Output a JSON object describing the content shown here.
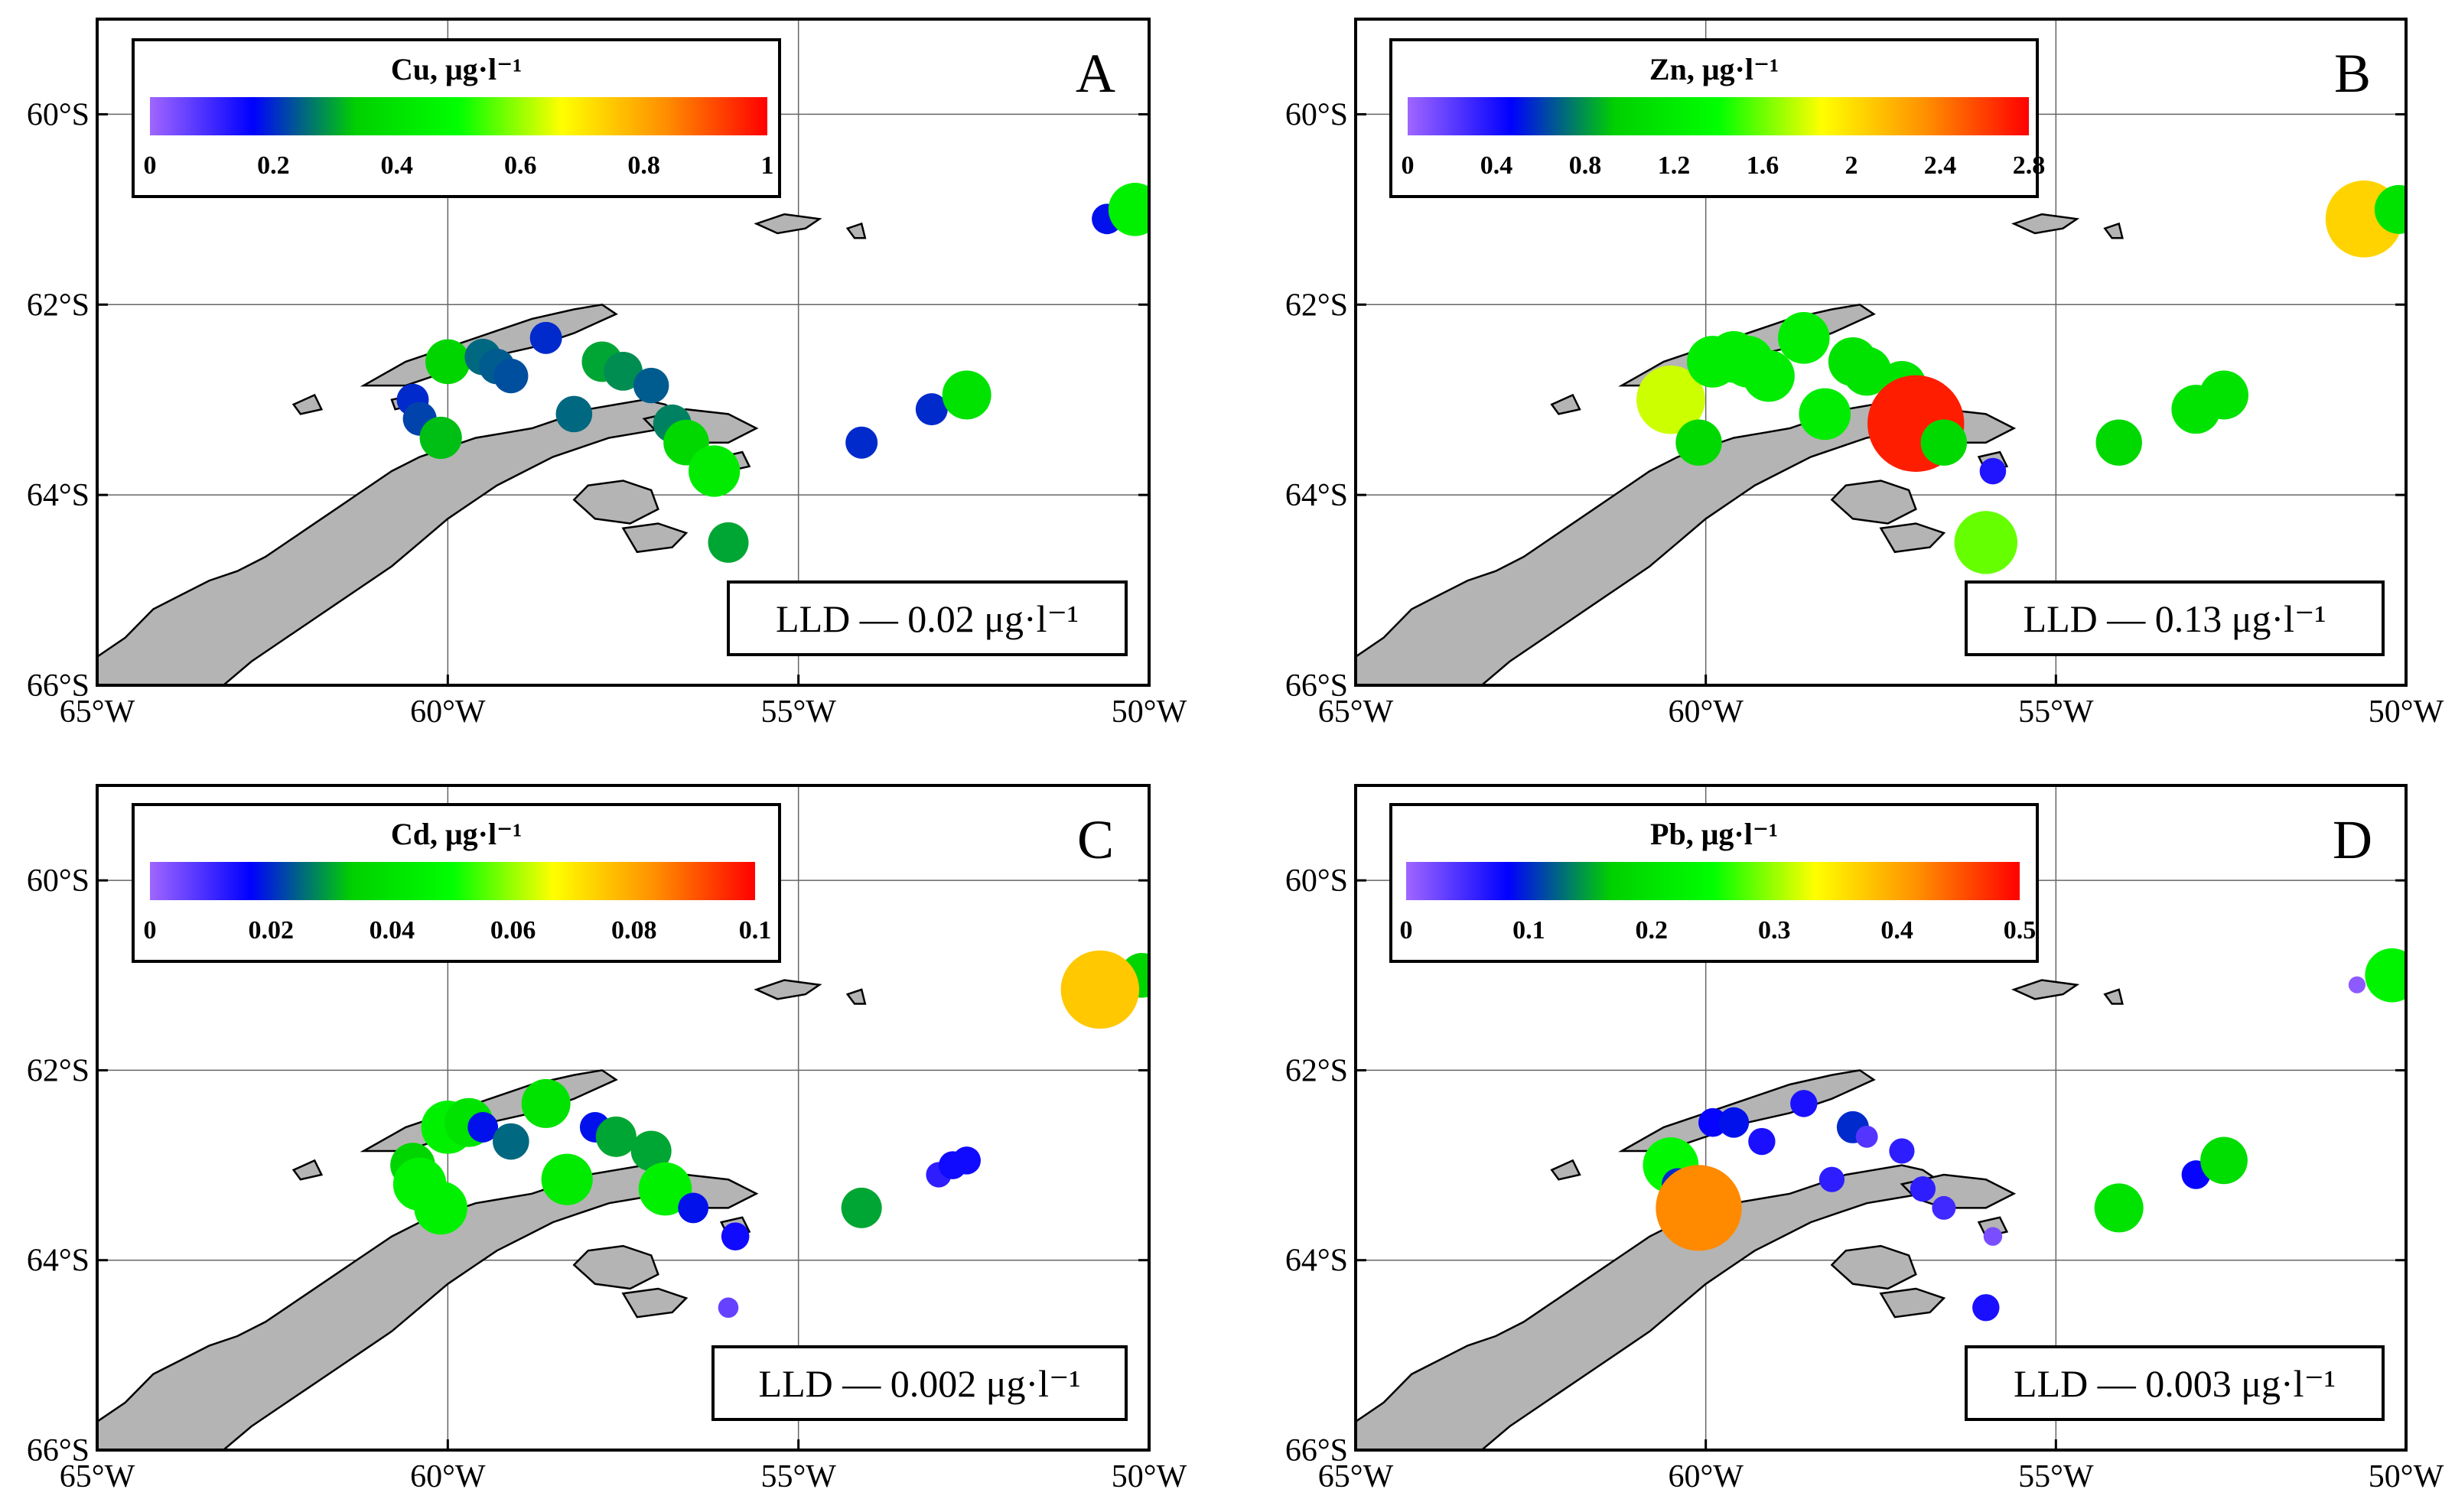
{
  "figure": {
    "axes": {
      "lon_ticks": [
        "65°W",
        "60°W",
        "55°W",
        "50°W"
      ],
      "lat_ticks": [
        "60°S",
        "62°S",
        "64°S",
        "66°S"
      ],
      "lon_values": [
        -65,
        -60,
        -55,
        -50
      ],
      "lat_values": [
        -60,
        -62,
        -64,
        -66
      ],
      "lon_range": [
        -65,
        -50
      ],
      "lat_range": [
        -66,
        -59
      ]
    },
    "colors": {
      "land": "#b4b4b4",
      "coast": "#000000",
      "gradient": [
        "#a066ff",
        "#0000ff",
        "#00d000",
        "#00ff00",
        "#ffff00",
        "#ff9000",
        "#ff0000"
      ]
    },
    "panels": [
      {
        "id": "A",
        "letter": "A",
        "legend_title": "Cu, μg·l⁻¹",
        "legend_ticks": [
          "0",
          "0.2",
          "0.4",
          "0.6",
          "0.8",
          "1"
        ],
        "lld_text": "LLD — 0.02 μg·l⁻¹"
      },
      {
        "id": "B",
        "letter": "B",
        "legend_title": "Zn, μg·l⁻¹",
        "legend_ticks": [
          "0",
          "0.4",
          "0.8",
          "1.2",
          "1.6",
          "2",
          "2.4",
          "2.8"
        ],
        "lld_text": "LLD — 0.13 μg·l⁻¹"
      },
      {
        "id": "C",
        "letter": "C",
        "legend_title": "Cd, μg·l⁻¹",
        "legend_ticks": [
          "0",
          "0.02",
          "0.04",
          "0.06",
          "0.08",
          "0.1"
        ],
        "lld_text": "LLD — 0.002 μg·l⁻¹"
      },
      {
        "id": "D",
        "letter": "D",
        "legend_title": "Pb, μg·l⁻¹",
        "legend_ticks": [
          "0",
          "0.1",
          "0.2",
          "0.3",
          "0.4",
          "0.5"
        ],
        "lld_text": "LLD — 0.003 μg·l⁻¹"
      }
    ]
  },
  "chart_data": [
    {
      "type": "scatter",
      "panel": "A",
      "xlabel": "",
      "ylabel": "",
      "xlim": [
        -65,
        -50
      ],
      "ylim": [
        -66,
        -59
      ],
      "color_range": [
        0,
        1
      ],
      "points": [
        {
          "lon": -50.6,
          "lat": -61.1,
          "v": 0.18
        },
        {
          "lon": -50.2,
          "lat": -61.0,
          "v": 0.45
        },
        {
          "lon": -60.5,
          "lat": -63.0,
          "v": 0.2
        },
        {
          "lon": -60.4,
          "lat": -63.2,
          "v": 0.22
        },
        {
          "lon": -60.1,
          "lat": -63.4,
          "v": 0.32
        },
        {
          "lon": -60.0,
          "lat": -62.6,
          "v": 0.35
        },
        {
          "lon": -59.5,
          "lat": -62.55,
          "v": 0.25
        },
        {
          "lon": -59.3,
          "lat": -62.65,
          "v": 0.24
        },
        {
          "lon": -59.1,
          "lat": -62.75,
          "v": 0.23
        },
        {
          "lon": -58.6,
          "lat": -62.35,
          "v": 0.2
        },
        {
          "lon": -58.2,
          "lat": -63.15,
          "v": 0.25
        },
        {
          "lon": -57.8,
          "lat": -62.6,
          "v": 0.3
        },
        {
          "lon": -57.5,
          "lat": -62.7,
          "v": 0.28
        },
        {
          "lon": -57.1,
          "lat": -62.85,
          "v": 0.24
        },
        {
          "lon": -56.8,
          "lat": -63.25,
          "v": 0.27
        },
        {
          "lon": -56.6,
          "lat": -63.45,
          "v": 0.36
        },
        {
          "lon": -56.2,
          "lat": -63.75,
          "v": 0.43
        },
        {
          "lon": -56.0,
          "lat": -64.5,
          "v": 0.3
        },
        {
          "lon": -54.1,
          "lat": -63.45,
          "v": 0.2
        },
        {
          "lon": -53.1,
          "lat": -63.1,
          "v": 0.2
        },
        {
          "lon": -52.6,
          "lat": -62.95,
          "v": 0.4
        }
      ]
    },
    {
      "type": "scatter",
      "panel": "B",
      "xlabel": "",
      "ylabel": "",
      "xlim": [
        -65,
        -50
      ],
      "ylim": [
        -66,
        -59
      ],
      "color_range": [
        0,
        3
      ],
      "points": [
        {
          "lon": -50.6,
          "lat": -61.1,
          "v": 2.2
        },
        {
          "lon": -50.1,
          "lat": -61.0,
          "v": 1.2
        },
        {
          "lon": -60.5,
          "lat": -63.0,
          "v": 1.9
        },
        {
          "lon": -60.1,
          "lat": -63.45,
          "v": 1.1
        },
        {
          "lon": -59.9,
          "lat": -62.6,
          "v": 1.3
        },
        {
          "lon": -59.6,
          "lat": -62.55,
          "v": 1.3
        },
        {
          "lon": -59.4,
          "lat": -62.6,
          "v": 1.3
        },
        {
          "lon": -59.1,
          "lat": -62.75,
          "v": 1.3
        },
        {
          "lon": -58.6,
          "lat": -62.35,
          "v": 1.3
        },
        {
          "lon": -58.3,
          "lat": -63.15,
          "v": 1.3
        },
        {
          "lon": -57.9,
          "lat": -62.6,
          "v": 1.2
        },
        {
          "lon": -57.7,
          "lat": -62.7,
          "v": 1.2
        },
        {
          "lon": -57.2,
          "lat": -62.85,
          "v": 1.2
        },
        {
          "lon": -57.0,
          "lat": -63.25,
          "v": 2.9
        },
        {
          "lon": -56.6,
          "lat": -63.45,
          "v": 1.1
        },
        {
          "lon": -55.9,
          "lat": -63.75,
          "v": 0.4
        },
        {
          "lon": -56.0,
          "lat": -64.5,
          "v": 1.7
        },
        {
          "lon": -54.1,
          "lat": -63.45,
          "v": 1.1
        },
        {
          "lon": -53.0,
          "lat": -63.1,
          "v": 1.2
        },
        {
          "lon": -52.6,
          "lat": -62.95,
          "v": 1.2
        }
      ]
    },
    {
      "type": "scatter",
      "panel": "C",
      "xlabel": "",
      "ylabel": "",
      "xlim": [
        -65,
        -50
      ],
      "ylim": [
        -66,
        -59
      ],
      "color_range": [
        0,
        0.1
      ],
      "points": [
        {
          "lon": -50.1,
          "lat": -61.0,
          "v": 0.035
        },
        {
          "lon": -50.7,
          "lat": -61.15,
          "v": 0.075
        },
        {
          "lon": -60.5,
          "lat": -63.0,
          "v": 0.035
        },
        {
          "lon": -60.4,
          "lat": -63.2,
          "v": 0.045
        },
        {
          "lon": -60.1,
          "lat": -63.45,
          "v": 0.045
        },
        {
          "lon": -60.0,
          "lat": -62.6,
          "v": 0.045
        },
        {
          "lon": -59.7,
          "lat": -62.55,
          "v": 0.04
        },
        {
          "lon": -59.5,
          "lat": -62.6,
          "v": 0.018
        },
        {
          "lon": -59.1,
          "lat": -62.75,
          "v": 0.025
        },
        {
          "lon": -58.6,
          "lat": -62.35,
          "v": 0.04
        },
        {
          "lon": -58.3,
          "lat": -63.15,
          "v": 0.043
        },
        {
          "lon": -57.9,
          "lat": -62.6,
          "v": 0.018
        },
        {
          "lon": -57.6,
          "lat": -62.7,
          "v": 0.03
        },
        {
          "lon": -57.1,
          "lat": -62.85,
          "v": 0.03
        },
        {
          "lon": -56.9,
          "lat": -63.25,
          "v": 0.045
        },
        {
          "lon": -56.5,
          "lat": -63.45,
          "v": 0.018
        },
        {
          "lon": -55.9,
          "lat": -63.75,
          "v": 0.015
        },
        {
          "lon": -56.0,
          "lat": -64.5,
          "v": 0.006
        },
        {
          "lon": -54.1,
          "lat": -63.45,
          "v": 0.03
        },
        {
          "lon": -53.0,
          "lat": -63.1,
          "v": 0.012
        },
        {
          "lon": -52.8,
          "lat": -63.0,
          "v": 0.015
        },
        {
          "lon": -52.6,
          "lat": -62.95,
          "v": 0.015
        }
      ]
    },
    {
      "type": "scatter",
      "panel": "D",
      "xlabel": "",
      "ylabel": "",
      "xlim": [
        -65,
        -50
      ],
      "ylim": [
        -66,
        -59
      ],
      "color_range": [
        0,
        0.5
      ],
      "points": [
        {
          "lon": -50.7,
          "lat": -61.1,
          "v": 0.01
        },
        {
          "lon": -50.2,
          "lat": -61.0,
          "v": 0.23
        },
        {
          "lon": -60.5,
          "lat": -63.0,
          "v": 0.24
        },
        {
          "lon": -60.4,
          "lat": -63.2,
          "v": 0.1
        },
        {
          "lon": -60.1,
          "lat": -63.45,
          "v": 0.42
        },
        {
          "lon": -59.9,
          "lat": -62.55,
          "v": 0.08
        },
        {
          "lon": -59.6,
          "lat": -62.55,
          "v": 0.09
        },
        {
          "lon": -59.2,
          "lat": -62.75,
          "v": 0.07
        },
        {
          "lon": -58.6,
          "lat": -62.35,
          "v": 0.07
        },
        {
          "lon": -58.2,
          "lat": -63.15,
          "v": 0.06
        },
        {
          "lon": -57.9,
          "lat": -62.6,
          "v": 0.1
        },
        {
          "lon": -57.7,
          "lat": -62.7,
          "v": 0.04
        },
        {
          "lon": -57.2,
          "lat": -62.85,
          "v": 0.06
        },
        {
          "lon": -56.9,
          "lat": -63.25,
          "v": 0.06
        },
        {
          "lon": -56.6,
          "lat": -63.45,
          "v": 0.05
        },
        {
          "lon": -55.9,
          "lat": -63.75,
          "v": 0.02
        },
        {
          "lon": -56.0,
          "lat": -64.5,
          "v": 0.07
        },
        {
          "lon": -54.1,
          "lat": -63.45,
          "v": 0.2
        },
        {
          "lon": -53.0,
          "lat": -63.1,
          "v": 0.08
        },
        {
          "lon": -52.6,
          "lat": -62.95,
          "v": 0.19
        }
      ]
    }
  ]
}
